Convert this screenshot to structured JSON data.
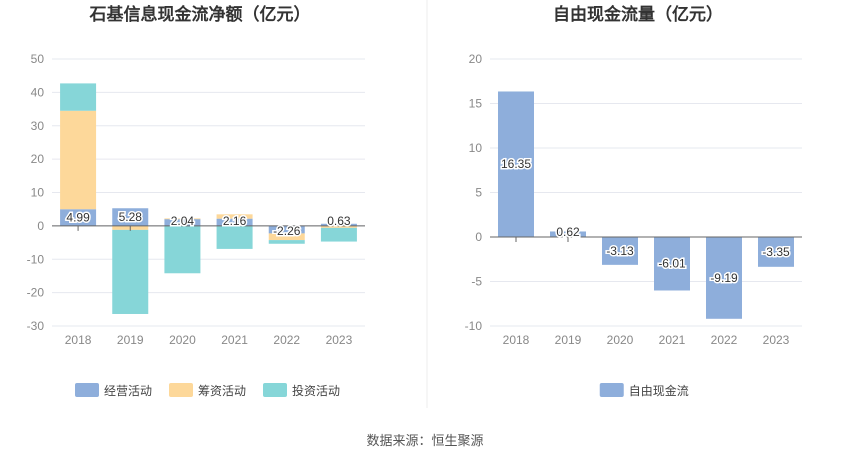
{
  "source": "数据来源：恒生聚源",
  "colors": {
    "operating": "#8eaedb",
    "financing": "#fdd89a",
    "investing": "#86d6d8",
    "free_cash_flow": "#8eaedb",
    "grid": "#e6e8ef",
    "axis_text": "#888888",
    "divider": "#e8e8e8"
  },
  "chart_data": [
    {
      "type": "bar",
      "stacked": true,
      "title": "石基信息现金流净额（亿元）",
      "categories": [
        "2018",
        "2019",
        "2020",
        "2021",
        "2022",
        "2023"
      ],
      "ylim": [
        -30,
        50
      ],
      "yticks": [
        -30,
        -20,
        -10,
        0,
        10,
        20,
        30,
        40,
        50
      ],
      "grid": true,
      "legend_position": "bottom-center",
      "series": [
        {
          "name": "经营活动",
          "key": "operating",
          "values": [
            4.99,
            5.28,
            2.04,
            2.16,
            -2.26,
            0.63
          ],
          "labels": [
            "4.99",
            "5.28",
            "2.04",
            "2.16",
            "-2.26",
            "0.63"
          ]
        },
        {
          "name": "筹资活动",
          "key": "financing",
          "values": [
            29.5,
            -1.2,
            0.2,
            1.3,
            -2.0,
            -0.6
          ],
          "labels": null
        },
        {
          "name": "投资活动",
          "key": "investing",
          "values": [
            8.2,
            -25.2,
            -14.2,
            -6.9,
            -1.1,
            -4.1
          ],
          "labels": null
        }
      ]
    },
    {
      "type": "bar",
      "title": "自由现金流量（亿元）",
      "categories": [
        "2018",
        "2019",
        "2020",
        "2021",
        "2022",
        "2023"
      ],
      "ylim": [
        -10,
        20
      ],
      "yticks": [
        -10,
        -5,
        0,
        5,
        10,
        15,
        20
      ],
      "grid": true,
      "legend_position": "bottom-center",
      "series": [
        {
          "name": "自由现金流",
          "key": "free_cash_flow",
          "values": [
            16.35,
            0.62,
            -3.13,
            -6.01,
            -9.19,
            -3.35
          ],
          "labels": [
            "16.35",
            "0.62",
            "-3.13",
            "-6.01",
            "-9.19",
            "-3.35"
          ]
        }
      ]
    }
  ]
}
